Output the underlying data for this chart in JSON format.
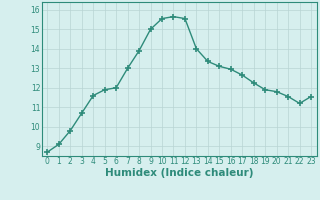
{
  "x": [
    0,
    1,
    2,
    3,
    4,
    5,
    6,
    7,
    8,
    9,
    10,
    11,
    12,
    13,
    14,
    15,
    16,
    17,
    18,
    19,
    20,
    21,
    22,
    23
  ],
  "y": [
    8.7,
    9.1,
    9.8,
    10.7,
    11.6,
    11.9,
    12.0,
    13.0,
    13.9,
    15.0,
    15.55,
    15.65,
    15.55,
    14.0,
    13.35,
    13.1,
    12.95,
    12.65,
    12.25,
    11.9,
    11.8,
    11.55,
    11.2,
    11.55
  ],
  "line_color": "#2e8b7a",
  "marker": "+",
  "marker_size": 4,
  "bg_color": "#d6efee",
  "grid_color": "#b8d4d4",
  "xlabel": "Humidex (Indice chaleur)",
  "xlim": [
    -0.5,
    23.5
  ],
  "ylim": [
    8.5,
    16.4
  ],
  "yticks": [
    9,
    10,
    11,
    12,
    13,
    14,
    15,
    16
  ],
  "xticks": [
    0,
    1,
    2,
    3,
    4,
    5,
    6,
    7,
    8,
    9,
    10,
    11,
    12,
    13,
    14,
    15,
    16,
    17,
    18,
    19,
    20,
    21,
    22,
    23
  ],
  "tick_label_fontsize": 5.5,
  "xlabel_fontsize": 7.5,
  "line_width": 1.0,
  "marker_color": "#2e8b7a"
}
